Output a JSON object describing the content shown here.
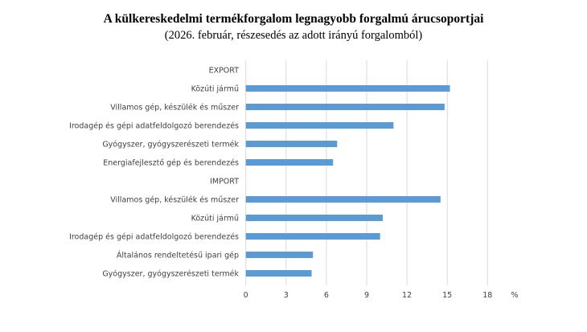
{
  "chart_data": {
    "type": "bar",
    "orientation": "horizontal",
    "title": "A külkereskedelmi termékforgalom legnagyobb forgalmú árucsoportjai",
    "subtitle": "(2026. február, részesedés az adott irányú forgalomból)",
    "xlabel": "%",
    "xlim": [
      0,
      18
    ],
    "xticks": [
      0,
      3,
      6,
      9,
      12,
      15,
      18
    ],
    "grid": true,
    "bar_color": "#5B9BD5",
    "categories": [
      "EXPORT",
      "Közúti jármű",
      "Villamos gép, készülék és műszer",
      "Irodagép és gépi adatfeldolgozó berendezés",
      "Gyógyszer, gyógyszerészeti termék",
      "Energiafejlesztő gép és berendezés",
      "IMPORT",
      "Villamos gép, készülék és műszer",
      "Közúti jármű",
      "Irodagép és gépi adatfeldolgozó berendezés",
      "Általános rendeltetésű ipari gép",
      "Gyógyszer, gyógyszerészeti termék"
    ],
    "values": [
      null,
      15.2,
      14.8,
      11.0,
      6.8,
      6.5,
      null,
      14.5,
      10.2,
      10.0,
      5.0,
      4.9
    ]
  }
}
